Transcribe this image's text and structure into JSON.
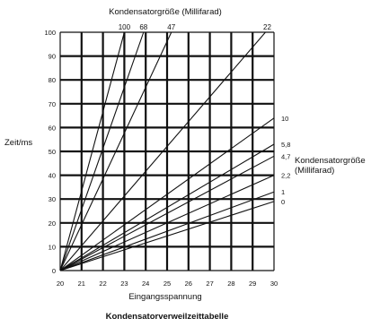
{
  "chart_data": {
    "type": "line",
    "title": "Kondensatorverweilzeittabelle",
    "xlabel": "Eingangsspannung",
    "ylabel": "Zeit/ms",
    "top_axis_label": "Kondensatorgröße (Millifarad)",
    "right_legend_label_line1": "Kondensatorgröße",
    "right_legend_label_line2": "(Millifarad)",
    "xlim": [
      20,
      30
    ],
    "ylim": [
      0,
      100
    ],
    "x_ticks": [
      "20",
      "21",
      "22",
      "23",
      "24",
      "25",
      "26",
      "27",
      "28",
      "29",
      "30"
    ],
    "y_ticks": [
      "0",
      "10",
      "20",
      "30",
      "40",
      "50",
      "60",
      "70",
      "80",
      "90",
      "100"
    ],
    "grid": true,
    "line_color": "#111111",
    "origin": [
      20,
      0
    ],
    "series": [
      {
        "name": "100",
        "end": [
          23.0,
          100
        ],
        "label_position": "top"
      },
      {
        "name": "68",
        "end": [
          23.9,
          100
        ],
        "label_position": "top"
      },
      {
        "name": "47",
        "end": [
          25.2,
          100
        ],
        "label_position": "top"
      },
      {
        "name": "22",
        "end": [
          29.6,
          100
        ],
        "label_position": "top"
      },
      {
        "name": "10",
        "end": [
          30,
          64
        ],
        "label_position": "right"
      },
      {
        "name": "5,8",
        "end": [
          30,
          53
        ],
        "label_position": "right"
      },
      {
        "name": "4,7",
        "end": [
          30,
          48
        ],
        "label_position": "right"
      },
      {
        "name": "2,2",
        "end": [
          30,
          40
        ],
        "label_position": "right"
      },
      {
        "name": "1",
        "end": [
          30,
          33
        ],
        "label_position": "right"
      },
      {
        "name": "0",
        "end": [
          30,
          29
        ],
        "label_position": "right"
      }
    ]
  }
}
